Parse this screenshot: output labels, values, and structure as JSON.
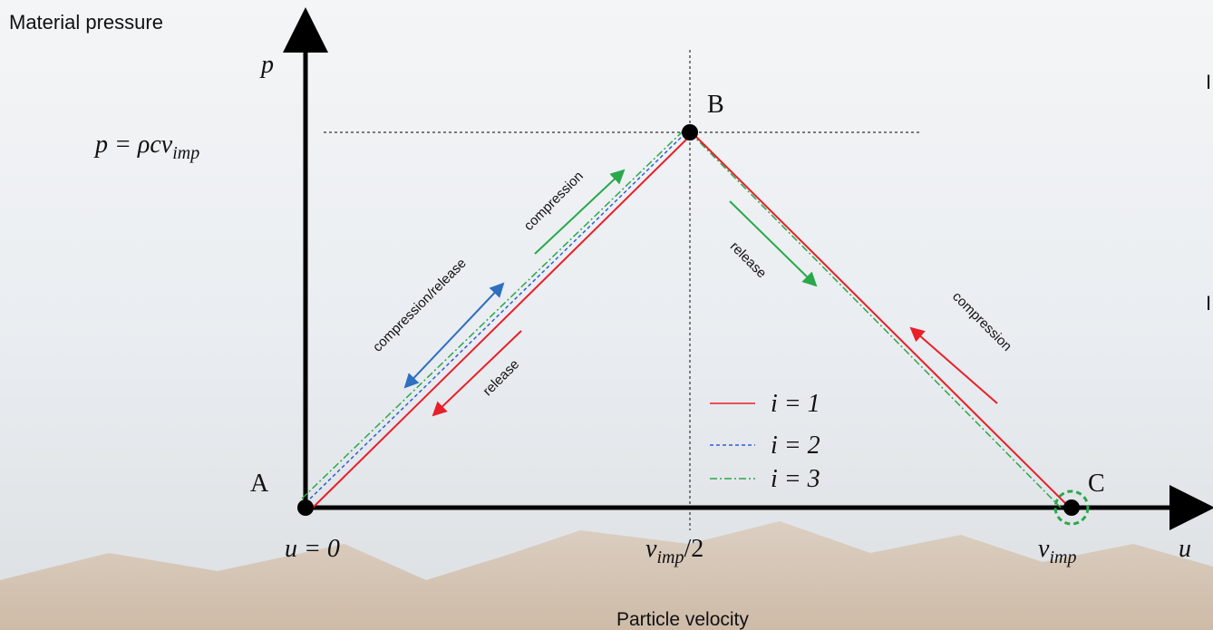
{
  "y_axis_title": "Material pressure",
  "x_axis_title": "Particle velocity",
  "axis_symbols": {
    "p": "p",
    "u": "u"
  },
  "pressure_label": {
    "main": "p = ρcv",
    "sub": "imp"
  },
  "points": [
    "A",
    "B",
    "C"
  ],
  "x_ticks": [
    {
      "main": "u = 0"
    },
    {
      "main": "v",
      "sub": "imp",
      "tail": "/2"
    },
    {
      "main": "v",
      "sub": "imp"
    }
  ],
  "annotations": {
    "left_compression": "compression",
    "left_compression_release": "compression/release",
    "left_release": "release",
    "right_release": "release",
    "right_compression": "compression"
  },
  "legend": [
    {
      "label": "i = 1",
      "color": "#e8202a",
      "dash": "solid"
    },
    {
      "label": "i = 2",
      "color": "#2f5fd0",
      "dash": "dashed"
    },
    {
      "label": "i = 3",
      "color": "#2aa84a",
      "dash": "dashdot"
    }
  ],
  "cut_off_texts": [
    "I",
    "I"
  ]
}
